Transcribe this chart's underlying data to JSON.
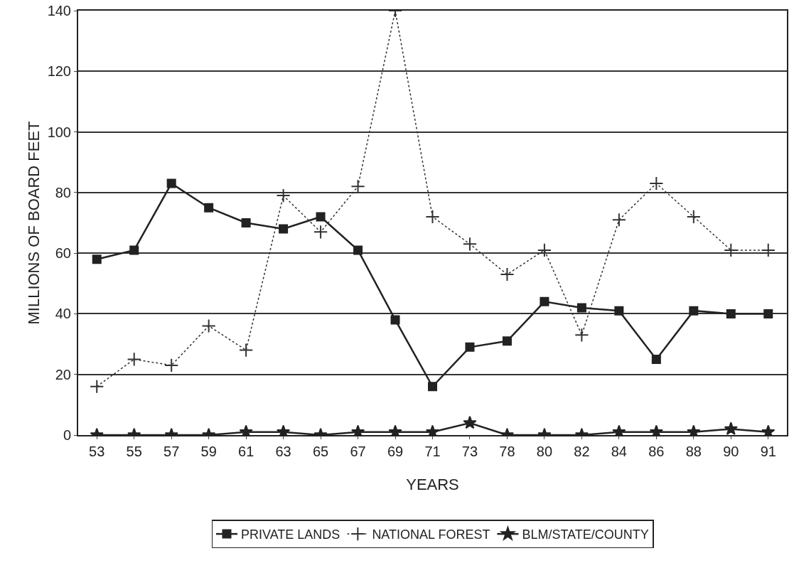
{
  "chart_data": {
    "type": "line",
    "xlabel": "YEARS",
    "ylabel": "MILLIONS OF BOARD FEET",
    "categories": [
      "53",
      "55",
      "57",
      "59",
      "61",
      "63",
      "65",
      "67",
      "69",
      "71",
      "73",
      "78",
      "80",
      "82",
      "84",
      "86",
      "88",
      "90",
      "91"
    ],
    "series": [
      {
        "name": "PRIVATE LANDS",
        "color": "#222222",
        "marker": "square",
        "line_style": "solid",
        "values": [
          58,
          61,
          83,
          75,
          70,
          68,
          72,
          61,
          38,
          16,
          29,
          31,
          44,
          42,
          41,
          25,
          41,
          40,
          40
        ]
      },
      {
        "name": "NATIONAL FOREST",
        "color": "#333333",
        "marker": "cross",
        "line_style": "dotted",
        "values": [
          16,
          25,
          23,
          36,
          28,
          79,
          67,
          82,
          140,
          72,
          63,
          53,
          61,
          33,
          71,
          83,
          72,
          61,
          61
        ]
      },
      {
        "name": "BLM/STATE/COUNTY",
        "color": "#222222",
        "marker": "star",
        "line_style": "solid",
        "values": [
          0,
          0,
          0,
          0,
          1,
          1,
          0,
          1,
          1,
          1,
          4,
          0,
          0,
          0,
          1,
          1,
          1,
          2,
          1
        ]
      }
    ],
    "ylim": [
      0,
      140
    ],
    "yticks": [
      0,
      20,
      40,
      60,
      80,
      100,
      120,
      140
    ],
    "grid": "y",
    "legend": "bottom"
  }
}
